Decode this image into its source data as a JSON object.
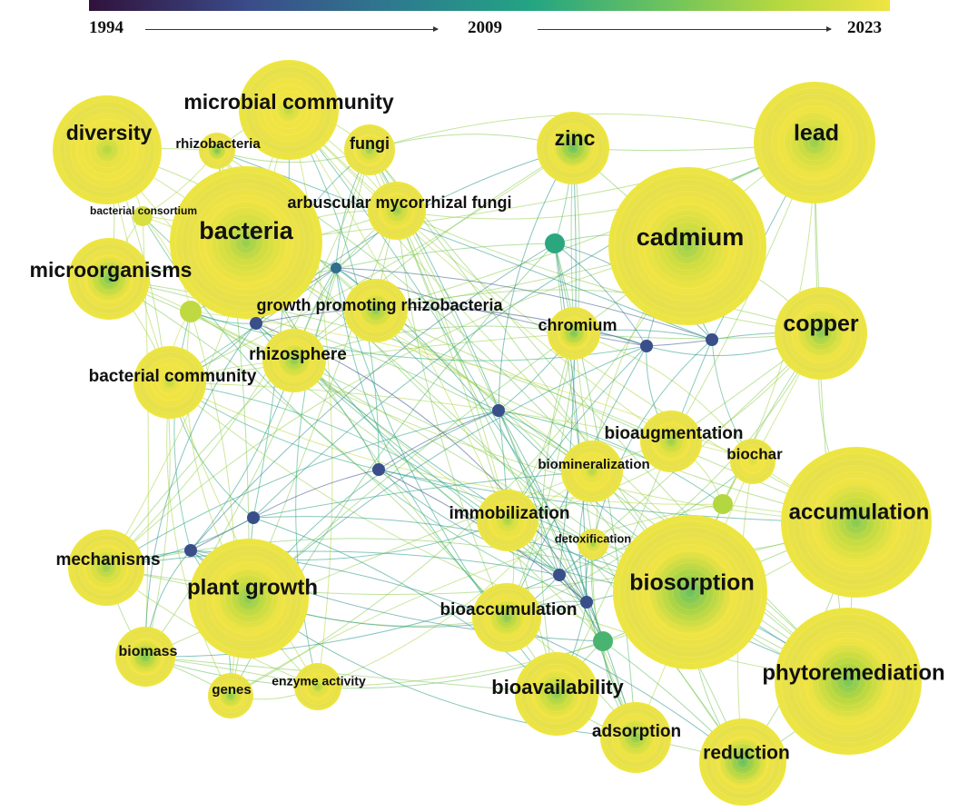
{
  "timeline": {
    "start": "1994",
    "mid": "2009",
    "end": "2023",
    "colors": [
      "#30123b",
      "#3b4c8a",
      "#2c7f8e",
      "#23a483",
      "#6dc35e",
      "#b5d83f",
      "#f0e442"
    ]
  },
  "nodes": [
    {
      "id": "diversity",
      "label": "diversity",
      "weight": 60,
      "year": 2018
    },
    {
      "id": "microbial-community",
      "label": "microbial community",
      "weight": 55,
      "year": 2019
    },
    {
      "id": "rhizobacteria",
      "label": "rhizobacteria",
      "weight": 20,
      "year": 2014
    },
    {
      "id": "fungi",
      "label": "fungi",
      "weight": 28,
      "year": 2016
    },
    {
      "id": "bacterial-consortium",
      "label": "bacterial consortium",
      "weight": 11,
      "year": 2021
    },
    {
      "id": "bacteria",
      "label": "bacteria",
      "weight": 84,
      "year": 2016
    },
    {
      "id": "arbuscular-mycorrhizal-fungi",
      "label": "arbuscular mycorrhizal fungi",
      "weight": 32,
      "year": 2016
    },
    {
      "id": "zinc",
      "label": "zinc",
      "weight": 40,
      "year": 2013
    },
    {
      "id": "lead",
      "label": "lead",
      "weight": 67,
      "year": 2016
    },
    {
      "id": "cadmium",
      "label": "cadmium",
      "weight": 87,
      "year": 2016
    },
    {
      "id": "microorganisms",
      "label": "microorganisms",
      "weight": 45,
      "year": 2014
    },
    {
      "id": "growth-promoting-rhizobacteria",
      "label": "growth promoting rhizobacteria",
      "weight": 35,
      "year": 2015
    },
    {
      "id": "chromium",
      "label": "chromium",
      "weight": 29,
      "year": 2014
    },
    {
      "id": "copper",
      "label": "copper",
      "weight": 51,
      "year": 2015
    },
    {
      "id": "rhizosphere",
      "label": "rhizosphere",
      "weight": 35,
      "year": 2015
    },
    {
      "id": "bacterial-community",
      "label": "bacterial community",
      "weight": 40,
      "year": 2019
    },
    {
      "id": "bioaugmentation",
      "label": "bioaugmentation",
      "weight": 34,
      "year": 2016
    },
    {
      "id": "biochar",
      "label": "biochar",
      "weight": 25,
      "year": 2021
    },
    {
      "id": "biomineralization",
      "label": "biomineralization",
      "weight": 34,
      "year": 2018
    },
    {
      "id": "accumulation",
      "label": "accumulation",
      "weight": 83,
      "year": 2015
    },
    {
      "id": "immobilization",
      "label": "immobilization",
      "weight": 34,
      "year": 2017
    },
    {
      "id": "detoxification",
      "label": "detoxification",
      "weight": 17,
      "year": 2016
    },
    {
      "id": "mechanisms",
      "label": "mechanisms",
      "weight": 42,
      "year": 2016
    },
    {
      "id": "plant-growth",
      "label": "plant growth",
      "weight": 66,
      "year": 2015
    },
    {
      "id": "biosorption",
      "label": "biosorption",
      "weight": 85,
      "year": 2013
    },
    {
      "id": "bioaccumulation",
      "label": "bioaccumulation",
      "weight": 38,
      "year": 2015
    },
    {
      "id": "biomass",
      "label": "biomass",
      "weight": 33,
      "year": 2014
    },
    {
      "id": "enzyme-activity",
      "label": "enzyme activity",
      "weight": 26,
      "year": 2017
    },
    {
      "id": "genes",
      "label": "genes",
      "weight": 25,
      "year": 2015
    },
    {
      "id": "bioavailability",
      "label": "bioavailability",
      "weight": 46,
      "year": 2015
    },
    {
      "id": "phytoremediation",
      "label": "phytoremediation",
      "weight": 81,
      "year": 2014
    },
    {
      "id": "adsorption",
      "label": "adsorption",
      "weight": 39,
      "year": 2015
    },
    {
      "id": "reduction",
      "label": "reduction",
      "weight": 48,
      "year": 2013
    }
  ],
  "minor_nodes": [
    {
      "id": "minor-1",
      "weight": 11,
      "year": 2009
    },
    {
      "id": "minor-2",
      "weight": 12,
      "year": 2019
    },
    {
      "id": "minor-3",
      "weight": 6,
      "year": 2002
    },
    {
      "id": "minor-4",
      "weight": 7,
      "year": 1999
    },
    {
      "id": "minor-5",
      "weight": 7,
      "year": 1999
    },
    {
      "id": "minor-6",
      "weight": 7,
      "year": 1999
    },
    {
      "id": "minor-7",
      "weight": 7,
      "year": 1999
    },
    {
      "id": "minor-8",
      "weight": 7,
      "year": 1999
    },
    {
      "id": "minor-9",
      "weight": 7,
      "year": 1999
    },
    {
      "id": "minor-10",
      "weight": 7,
      "year": 1999
    },
    {
      "id": "minor-11",
      "weight": 11,
      "year": 2018
    },
    {
      "id": "minor-12",
      "weight": 7,
      "year": 1999
    },
    {
      "id": "minor-13",
      "weight": 7,
      "year": 1999
    },
    {
      "id": "minor-14",
      "weight": 11,
      "year": 2011
    }
  ]
}
